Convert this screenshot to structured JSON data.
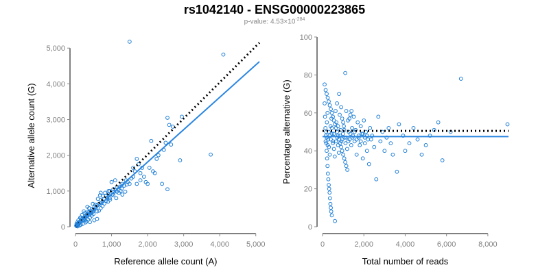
{
  "title": "rs1042140 - ENSG00000223865",
  "subtitle": {
    "label": "p-value: 4.53×10",
    "exponent": "-284"
  },
  "colors": {
    "points": "#1f7fd6",
    "fit": "#2b86e0",
    "reference": "#000000",
    "tick_text": "#808080"
  },
  "chart_data": [
    {
      "type": "scatter",
      "id": "left",
      "xlabel": "Reference allele count (A)",
      "ylabel": "Alternative allele count (G)",
      "xlim": [
        0,
        5100
      ],
      "ylim": [
        0,
        5100
      ],
      "xticks": [
        0,
        1000,
        2000,
        3000,
        4000,
        5000
      ],
      "xtick_labels": [
        "0",
        "1,000",
        "2,000",
        "3,000",
        "4,000",
        "5,000"
      ],
      "yticks": [
        0,
        1000,
        2000,
        3000,
        4000,
        5000
      ],
      "ytick_labels": [
        "0",
        "1,000",
        "2,000",
        "3,000",
        "4,000",
        "5,000"
      ],
      "fit_line": [
        [
          0,
          0
        ],
        [
          5100,
          4620
        ]
      ],
      "reference_line": [
        [
          0,
          0
        ],
        [
          5100,
          5150
        ]
      ],
      "points": [
        [
          1500,
          5180
        ],
        [
          4100,
          4820
        ],
        [
          2550,
          3050
        ],
        [
          2950,
          3080
        ],
        [
          2700,
          2800
        ],
        [
          2600,
          2850
        ],
        [
          3750,
          2020
        ],
        [
          2900,
          1860
        ],
        [
          2500,
          2350
        ],
        [
          2100,
          2400
        ],
        [
          2200,
          1500
        ],
        [
          1600,
          1650
        ],
        [
          1700,
          1900
        ],
        [
          1800,
          1500
        ],
        [
          2550,
          1050
        ],
        [
          2000,
          1200
        ],
        [
          1950,
          1250
        ],
        [
          1400,
          1300
        ],
        [
          1300,
          1200
        ],
        [
          1150,
          1100
        ],
        [
          1050,
          1050
        ],
        [
          1200,
          950
        ],
        [
          900,
          920
        ],
        [
          850,
          870
        ],
        [
          800,
          780
        ],
        [
          750,
          700
        ],
        [
          700,
          750
        ],
        [
          650,
          640
        ],
        [
          600,
          600
        ],
        [
          560,
          520
        ],
        [
          520,
          540
        ],
        [
          500,
          480
        ],
        [
          480,
          420
        ],
        [
          460,
          500
        ],
        [
          440,
          390
        ],
        [
          420,
          430
        ],
        [
          400,
          350
        ],
        [
          380,
          410
        ],
        [
          360,
          330
        ],
        [
          340,
          360
        ],
        [
          320,
          300
        ],
        [
          300,
          330
        ],
        [
          280,
          260
        ],
        [
          260,
          290
        ],
        [
          240,
          230
        ],
        [
          220,
          250
        ],
        [
          200,
          190
        ],
        [
          180,
          220
        ],
        [
          160,
          150
        ],
        [
          140,
          170
        ],
        [
          120,
          120
        ],
        [
          100,
          130
        ],
        [
          90,
          80
        ],
        [
          80,
          100
        ],
        [
          70,
          60
        ],
        [
          60,
          70
        ],
        [
          50,
          40
        ],
        [
          40,
          50
        ],
        [
          30,
          20
        ],
        [
          20,
          30
        ],
        [
          150,
          260
        ],
        [
          250,
          180
        ],
        [
          350,
          420
        ],
        [
          450,
          310
        ],
        [
          550,
          620
        ],
        [
          650,
          450
        ],
        [
          750,
          580
        ],
        [
          850,
          720
        ],
        [
          950,
          800
        ],
        [
          1050,
          880
        ],
        [
          1150,
          980
        ],
        [
          1250,
          1000
        ],
        [
          1350,
          1150
        ],
        [
          1450,
          1250
        ],
        [
          1600,
          1400
        ],
        [
          1700,
          1200
        ],
        [
          1000,
          1250
        ],
        [
          900,
          700
        ],
        [
          800,
          650
        ],
        [
          300,
          150
        ],
        [
          200,
          80
        ],
        [
          120,
          40
        ],
        [
          60,
          10
        ],
        [
          400,
          250
        ],
        [
          500,
          360
        ],
        [
          600,
          430
        ],
        [
          700,
          520
        ],
        [
          950,
          1000
        ],
        [
          1100,
          1300
        ],
        [
          1300,
          900
        ],
        [
          1500,
          1200
        ],
        [
          1800,
          1300
        ],
        [
          2300,
          2000
        ],
        [
          2400,
          1200
        ],
        [
          400,
          130
        ],
        [
          520,
          180
        ],
        [
          600,
          220
        ],
        [
          330,
          560
        ],
        [
          230,
          430
        ],
        [
          700,
          950
        ],
        [
          480,
          640
        ],
        [
          380,
          520
        ],
        [
          250,
          380
        ],
        [
          180,
          330
        ],
        [
          130,
          250
        ],
        [
          80,
          180
        ],
        [
          50,
          120
        ],
        [
          30,
          80
        ],
        [
          150,
          60
        ],
        [
          280,
          120
        ],
        [
          350,
          200
        ],
        [
          620,
          780
        ],
        [
          680,
          880
        ],
        [
          760,
          860
        ],
        [
          820,
          950
        ],
        [
          880,
          810
        ],
        [
          920,
          1000
        ],
        [
          960,
          760
        ],
        [
          1020,
          900
        ],
        [
          1080,
          980
        ],
        [
          1130,
          800
        ],
        [
          1180,
          1050
        ],
        [
          1230,
          1120
        ],
        [
          1280,
          1070
        ],
        [
          1380,
          980
        ],
        [
          1420,
          1180
        ],
        [
          1550,
          1350
        ],
        [
          1650,
          1550
        ],
        [
          1750,
          1750
        ],
        [
          1850,
          1650
        ],
        [
          2250,
          1900
        ],
        [
          2450,
          2150
        ],
        [
          2650,
          2300
        ],
        [
          1900,
          1400
        ],
        [
          2050,
          1650
        ],
        [
          2150,
          1550
        ]
      ]
    },
    {
      "type": "scatter",
      "id": "right",
      "xlabel": "Total number of reads",
      "ylabel": "Percentage alternative (G)",
      "xlim": [
        0,
        9000
      ],
      "ylim": [
        0,
        100
      ],
      "xticks": [
        0,
        2000,
        4000,
        6000,
        8000
      ],
      "xtick_labels": [
        "0",
        "2,000",
        "4,000",
        "6,000",
        "8,000"
      ],
      "yticks": [
        0,
        20,
        40,
        60,
        80,
        100
      ],
      "ytick_labels": [
        "0",
        "20",
        "40",
        "60",
        "80",
        "100"
      ],
      "fit_line": [
        [
          0,
          47.5
        ],
        [
          9000,
          47.5
        ]
      ],
      "reference_line": [
        [
          0,
          50.5
        ],
        [
          9000,
          50.5
        ]
      ],
      "points": [
        [
          100,
          75
        ],
        [
          150,
          72
        ],
        [
          200,
          70
        ],
        [
          250,
          68
        ],
        [
          300,
          66
        ],
        [
          350,
          64
        ],
        [
          400,
          62
        ],
        [
          450,
          60
        ],
        [
          500,
          58
        ],
        [
          550,
          56
        ],
        [
          600,
          54
        ],
        [
          650,
          52
        ],
        [
          700,
          50
        ],
        [
          750,
          48
        ],
        [
          800,
          46
        ],
        [
          850,
          44
        ],
        [
          900,
          42
        ],
        [
          950,
          40
        ],
        [
          1000,
          38
        ],
        [
          1050,
          36
        ],
        [
          1100,
          34
        ],
        [
          1150,
          32
        ],
        [
          1200,
          30
        ],
        [
          100,
          65
        ],
        [
          120,
          58
        ],
        [
          140,
          52
        ],
        [
          160,
          48
        ],
        [
          180,
          44
        ],
        [
          200,
          40
        ],
        [
          220,
          36
        ],
        [
          240,
          32
        ],
        [
          260,
          28
        ],
        [
          280,
          25
        ],
        [
          300,
          22
        ],
        [
          320,
          20
        ],
        [
          340,
          18
        ],
        [
          360,
          15
        ],
        [
          380,
          12
        ],
        [
          400,
          10
        ],
        [
          420,
          8
        ],
        [
          450,
          6
        ],
        [
          600,
          3
        ],
        [
          150,
          45
        ],
        [
          180,
          50
        ],
        [
          210,
          55
        ],
        [
          240,
          60
        ],
        [
          270,
          46
        ],
        [
          310,
          42
        ],
        [
          350,
          38
        ],
        [
          390,
          53
        ],
        [
          430,
          57
        ],
        [
          470,
          49
        ],
        [
          510,
          45
        ],
        [
          550,
          41
        ],
        [
          590,
          37
        ],
        [
          630,
          61
        ],
        [
          670,
          55
        ],
        [
          710,
          47
        ],
        [
          750,
          43
        ],
        [
          790,
          39
        ],
        [
          830,
          59
        ],
        [
          870,
          51
        ],
        [
          910,
          45
        ],
        [
          950,
          57
        ],
        [
          990,
          49
        ],
        [
          1030,
          53
        ],
        [
          1070,
          47
        ],
        [
          1110,
          44
        ],
        [
          1150,
          61
        ],
        [
          1190,
          41
        ],
        [
          1230,
          56
        ],
        [
          1270,
          50
        ],
        [
          1310,
          46
        ],
        [
          1350,
          59
        ],
        [
          1390,
          43
        ],
        [
          1430,
          52
        ],
        [
          1470,
          48
        ],
        [
          1510,
          58
        ],
        [
          1550,
          45
        ],
        [
          1600,
          51
        ],
        [
          1650,
          38
        ],
        [
          1700,
          55
        ],
        [
          1750,
          47
        ],
        [
          1800,
          43
        ],
        [
          1850,
          53
        ],
        [
          1900,
          49
        ],
        [
          1950,
          36
        ],
        [
          2000,
          56
        ],
        [
          2050,
          44
        ],
        [
          2100,
          50
        ],
        [
          2150,
          40
        ],
        [
          2200,
          46
        ],
        [
          2250,
          33
        ],
        [
          2300,
          52
        ],
        [
          2400,
          48
        ],
        [
          2500,
          42
        ],
        [
          2600,
          25
        ],
        [
          2700,
          58
        ],
        [
          2800,
          45
        ],
        [
          2900,
          50
        ],
        [
          3000,
          40
        ],
        [
          3100,
          47
        ],
        [
          3200,
          52
        ],
        [
          3300,
          44
        ],
        [
          3400,
          38
        ],
        [
          3600,
          29
        ],
        [
          3700,
          54
        ],
        [
          3900,
          48
        ],
        [
          4000,
          40
        ],
        [
          4200,
          44
        ],
        [
          4400,
          52
        ],
        [
          4600,
          46
        ],
        [
          4800,
          38
        ],
        [
          5000,
          43
        ],
        [
          5200,
          48
        ],
        [
          5400,
          51
        ],
        [
          5600,
          55
        ],
        [
          5800,
          35
        ],
        [
          6200,
          50
        ],
        [
          6700,
          78
        ],
        [
          8950,
          54
        ],
        [
          1100,
          81
        ],
        [
          1400,
          61
        ],
        [
          800,
          70
        ],
        [
          700,
          65
        ],
        [
          900,
          63
        ],
        [
          1300,
          57
        ],
        [
          1000,
          55
        ],
        [
          500,
          44
        ],
        [
          400,
          46
        ],
        [
          300,
          50
        ],
        [
          200,
          47
        ],
        [
          250,
          43
        ],
        [
          350,
          48
        ],
        [
          450,
          52
        ],
        [
          550,
          49
        ],
        [
          650,
          45
        ],
        [
          750,
          53
        ],
        [
          850,
          48
        ],
        [
          950,
          46
        ],
        [
          1050,
          51
        ],
        [
          1150,
          47
        ],
        [
          1250,
          45
        ],
        [
          1350,
          49
        ],
        [
          1450,
          47
        ],
        [
          1550,
          50
        ],
        [
          1650,
          46
        ],
        [
          1750,
          48
        ],
        [
          1850,
          45
        ],
        [
          1950,
          49
        ],
        [
          2050,
          47
        ],
        [
          2150,
          48
        ],
        [
          2350,
          46
        ]
      ]
    }
  ]
}
